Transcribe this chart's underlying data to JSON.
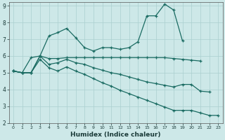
{
  "xlabel": "Humidex (Indice chaleur)",
  "background_color": "#cde8e8",
  "grid_color": "#aacfcf",
  "line_color": "#1a6b62",
  "xlim": [
    -0.5,
    23.5
  ],
  "ylim": [
    2,
    9.2
  ],
  "yticks": [
    2,
    3,
    4,
    5,
    6,
    7,
    8,
    9
  ],
  "xticks": [
    0,
    1,
    2,
    3,
    4,
    5,
    6,
    7,
    8,
    9,
    10,
    11,
    12,
    13,
    14,
    15,
    16,
    17,
    18,
    19,
    20,
    21,
    22,
    23
  ],
  "lines": [
    {
      "x": [
        0,
        1,
        2,
        3,
        4,
        5,
        6,
        7,
        8,
        9,
        10,
        11,
        12,
        13,
        14,
        15,
        16,
        17,
        18,
        19
      ],
      "y": [
        5.1,
        5.0,
        5.0,
        6.0,
        7.2,
        7.4,
        7.65,
        7.1,
        6.5,
        6.3,
        6.5,
        6.5,
        6.4,
        6.5,
        6.85,
        8.4,
        8.4,
        9.1,
        8.75,
        6.9
      ]
    },
    {
      "x": [
        0,
        1,
        2,
        3,
        4,
        5,
        6,
        7,
        8,
        9,
        10,
        11,
        12,
        13,
        14,
        15,
        16,
        17,
        18,
        19,
        20,
        21
      ],
      "y": [
        5.1,
        5.0,
        5.9,
        6.0,
        5.85,
        5.85,
        5.9,
        5.9,
        5.9,
        5.9,
        5.9,
        5.9,
        5.9,
        5.9,
        5.9,
        5.9,
        5.9,
        5.9,
        5.85,
        5.8,
        5.75,
        5.7
      ]
    },
    {
      "x": [
        0,
        1,
        2,
        3,
        4,
        5,
        6,
        7,
        8,
        9,
        10,
        11,
        12,
        13,
        14,
        15,
        16,
        17,
        18,
        19,
        20,
        21,
        22
      ],
      "y": [
        5.1,
        5.0,
        5.0,
        6.0,
        5.5,
        5.6,
        5.8,
        5.6,
        5.5,
        5.3,
        5.15,
        5.0,
        4.9,
        4.75,
        4.6,
        4.45,
        4.35,
        4.25,
        4.15,
        4.3,
        4.3,
        3.9,
        3.85
      ]
    },
    {
      "x": [
        0,
        1,
        2,
        3,
        4,
        5,
        6,
        7,
        8,
        9,
        10,
        11,
        12,
        13,
        14,
        15,
        16,
        17,
        18,
        19,
        20,
        21,
        22,
        23
      ],
      "y": [
        5.1,
        5.0,
        5.0,
        5.8,
        5.3,
        5.1,
        5.35,
        5.1,
        4.9,
        4.65,
        4.4,
        4.2,
        3.95,
        3.75,
        3.55,
        3.35,
        3.15,
        2.95,
        2.75,
        2.75,
        2.75,
        2.6,
        2.45,
        2.45
      ]
    }
  ]
}
